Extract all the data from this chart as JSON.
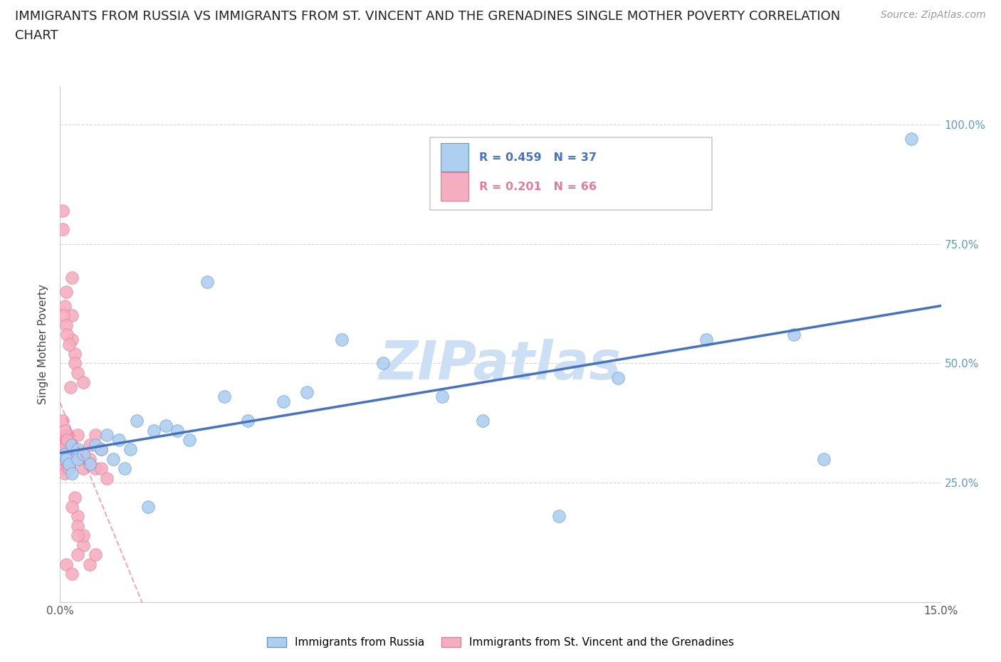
{
  "title_line1": "IMMIGRANTS FROM RUSSIA VS IMMIGRANTS FROM ST. VINCENT AND THE GRENADINES SINGLE MOTHER POVERTY CORRELATION",
  "title_line2": "CHART",
  "source": "Source: ZipAtlas.com",
  "ylabel": "Single Mother Poverty",
  "xlim": [
    0.0,
    0.15
  ],
  "ylim": [
    0.0,
    1.08
  ],
  "yticks": [
    0.0,
    0.25,
    0.5,
    0.75,
    1.0
  ],
  "ytick_labels": [
    "",
    "25.0%",
    "50.0%",
    "75.0%",
    "100.0%"
  ],
  "xticks": [
    0.0,
    0.03,
    0.06,
    0.09,
    0.12,
    0.15
  ],
  "xtick_labels": [
    "0.0%",
    "",
    "",
    "",
    "",
    "15.0%"
  ],
  "russia_color": "#aecff0",
  "russia_edge_color": "#5b9bd5",
  "stvincent_color": "#f5aec0",
  "stvincent_edge_color": "#e87a9a",
  "russia_R": 0.459,
  "russia_N": 37,
  "stvincent_R": 0.201,
  "stvincent_N": 66,
  "russia_line_color": "#4472c4",
  "stvincent_line_color": "#e87a9a",
  "russia_scatter_x": [
    0.0008,
    0.001,
    0.0015,
    0.002,
    0.002,
    0.003,
    0.003,
    0.004,
    0.005,
    0.006,
    0.007,
    0.008,
    0.009,
    0.01,
    0.011,
    0.012,
    0.013,
    0.015,
    0.016,
    0.018,
    0.02,
    0.022,
    0.025,
    0.028,
    0.032,
    0.038,
    0.042,
    0.048,
    0.055,
    0.065,
    0.072,
    0.085,
    0.095,
    0.11,
    0.125,
    0.13,
    0.145
  ],
  "russia_scatter_y": [
    0.31,
    0.3,
    0.29,
    0.33,
    0.27,
    0.32,
    0.3,
    0.31,
    0.29,
    0.33,
    0.32,
    0.35,
    0.3,
    0.34,
    0.28,
    0.32,
    0.38,
    0.2,
    0.36,
    0.37,
    0.36,
    0.34,
    0.67,
    0.43,
    0.38,
    0.42,
    0.44,
    0.55,
    0.5,
    0.43,
    0.38,
    0.18,
    0.47,
    0.55,
    0.56,
    0.3,
    0.97
  ],
  "stvincent_scatter_x": [
    0.0003,
    0.0004,
    0.0005,
    0.0005,
    0.0006,
    0.0007,
    0.0008,
    0.0008,
    0.0009,
    0.001,
    0.001,
    0.001,
    0.0012,
    0.0013,
    0.0014,
    0.0015,
    0.0016,
    0.0017,
    0.0018,
    0.002,
    0.002,
    0.002,
    0.0022,
    0.0025,
    0.0025,
    0.003,
    0.003,
    0.003,
    0.0035,
    0.004,
    0.004,
    0.004,
    0.005,
    0.005,
    0.005,
    0.006,
    0.006,
    0.007,
    0.007,
    0.008,
    0.0004,
    0.0006,
    0.001,
    0.0012,
    0.0015,
    0.002,
    0.0025,
    0.003,
    0.004,
    0.005,
    0.0005,
    0.001,
    0.0015,
    0.002,
    0.003,
    0.004,
    0.006,
    0.001,
    0.002,
    0.003,
    0.0003,
    0.0005,
    0.0008,
    0.0012,
    0.002,
    0.003
  ],
  "stvincent_scatter_y": [
    0.31,
    0.29,
    0.33,
    0.28,
    0.3,
    0.35,
    0.27,
    0.62,
    0.32,
    0.3,
    0.33,
    0.65,
    0.32,
    0.29,
    0.35,
    0.31,
    0.28,
    0.33,
    0.45,
    0.3,
    0.6,
    0.55,
    0.32,
    0.52,
    0.5,
    0.31,
    0.35,
    0.48,
    0.3,
    0.31,
    0.46,
    0.28,
    0.33,
    0.3,
    0.29,
    0.28,
    0.35,
    0.32,
    0.28,
    0.26,
    0.78,
    0.6,
    0.58,
    0.56,
    0.54,
    0.68,
    0.22,
    0.18,
    0.12,
    0.08,
    0.82,
    0.34,
    0.28,
    0.2,
    0.16,
    0.14,
    0.1,
    0.08,
    0.06,
    0.1,
    0.32,
    0.38,
    0.36,
    0.34,
    0.3,
    0.14
  ],
  "watermark": "ZIPatlas",
  "watermark_color": "#ccdff5",
  "background_color": "#ffffff",
  "grid_color": "#d0d0d0",
  "yticklabel_color": "#5b9bd5",
  "title_fontsize": 13,
  "axis_label_fontsize": 11,
  "tick_fontsize": 11
}
